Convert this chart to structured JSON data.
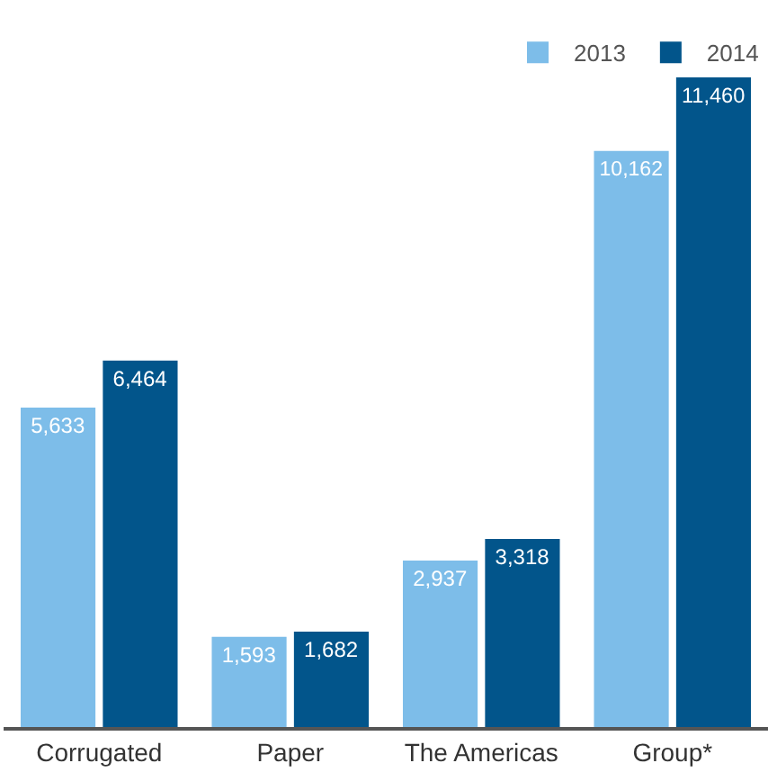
{
  "chart_data": {
    "type": "bar",
    "categories": [
      "Corrugated",
      "Paper",
      "The Americas",
      "Group*"
    ],
    "series": [
      {
        "name": "2013",
        "color": "#7dbde9",
        "values": [
          5633,
          1593,
          2937,
          10162
        ],
        "value_labels": [
          "5,633",
          "1,593",
          "2,937",
          "10,162"
        ]
      },
      {
        "name": "2014",
        "color": "#02558b",
        "values": [
          6464,
          1682,
          3318,
          11460
        ],
        "value_labels": [
          "6,464",
          "1,682",
          "3,318",
          "11,460"
        ]
      }
    ],
    "legend": "top right",
    "tick_labels": "x"
  }
}
